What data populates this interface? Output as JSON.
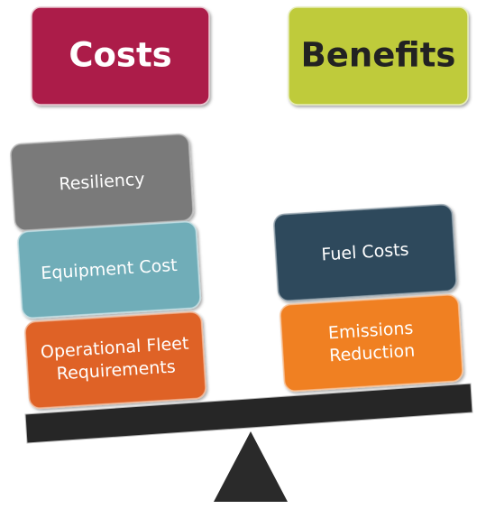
{
  "header": {
    "costs": "Costs",
    "benefits": "Benefits"
  },
  "costs": [
    {
      "label": [
        "Resiliency"
      ]
    },
    {
      "label": [
        "Equipment Cost"
      ]
    },
    {
      "label": [
        "Operational Fleet",
        "Requirements"
      ]
    }
  ],
  "benefits": [
    {
      "label": [
        "Fuel Costs"
      ]
    },
    {
      "label": [
        "Emissions",
        "Reduction"
      ]
    }
  ]
}
